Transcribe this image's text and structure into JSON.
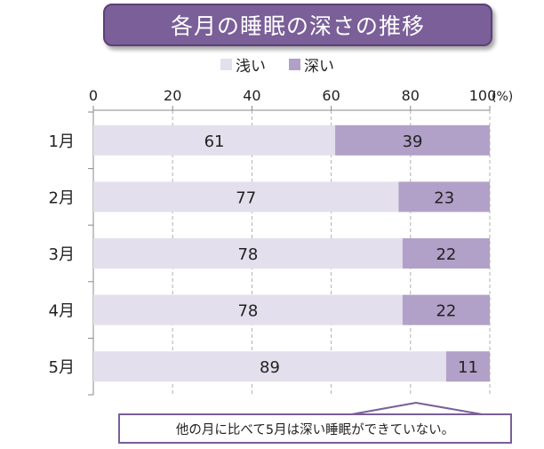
{
  "title": "各月の睡眠の深さの推移",
  "legend": {
    "shallow": "浅い",
    "deep": "深い"
  },
  "note": "他の月に比べて5月は深い睡眠ができていない。",
  "colors": {
    "title_bg": "#7a5f99",
    "shallow": "#e4dfec",
    "deep": "#b1a0c7",
    "axis": "#888888",
    "note_border": "#7a5f99"
  },
  "chart_data": {
    "type": "bar",
    "orientation": "horizontal",
    "stacked": true,
    "categories": [
      "1月",
      "2月",
      "3月",
      "4月",
      "5月"
    ],
    "series": [
      {
        "name": "浅い",
        "values": [
          61,
          77,
          78,
          78,
          89
        ]
      },
      {
        "name": "深い",
        "values": [
          39,
          23,
          22,
          22,
          11
        ]
      }
    ],
    "xlim": [
      0,
      100
    ],
    "xticks": [
      0,
      20,
      40,
      60,
      80,
      100
    ],
    "x_unit": "(%)",
    "title": "各月の睡眠の深さの推移",
    "legend_position": "top",
    "grid": "vertical dashed"
  }
}
